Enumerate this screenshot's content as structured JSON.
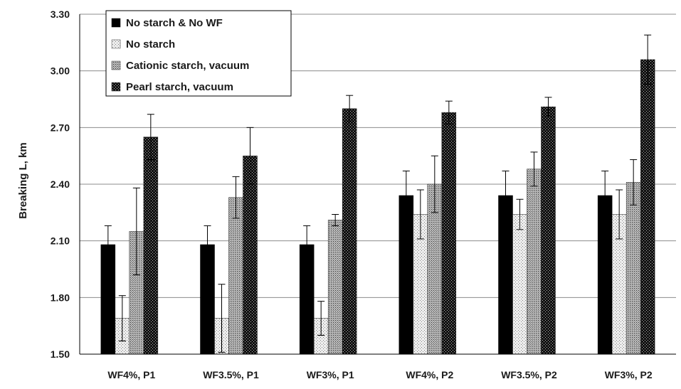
{
  "chart_data": {
    "type": "bar",
    "categories": [
      "WF4%, P1",
      "WF3.5%, P1",
      "WF3%, P1",
      "WF4%, P2",
      "WF3.5%, P2",
      "WF3%, P2"
    ],
    "series": [
      {
        "name": "No starch & No WF",
        "pattern": "solid-black",
        "values": [
          2.08,
          2.08,
          2.08,
          2.34,
          2.34,
          2.34
        ],
        "errors": [
          0.1,
          0.1,
          0.1,
          0.13,
          0.13,
          0.13
        ]
      },
      {
        "name": "No starch",
        "pattern": "light-dotted",
        "values": [
          1.69,
          1.69,
          1.69,
          2.24,
          2.24,
          2.24
        ],
        "errors": [
          0.12,
          0.18,
          0.09,
          0.13,
          0.08,
          0.13
        ]
      },
      {
        "name": "Cationic starch, vacuum",
        "pattern": "medium-dotted",
        "values": [
          2.15,
          2.33,
          2.21,
          2.4,
          2.48,
          2.41
        ],
        "errors": [
          0.23,
          0.11,
          0.03,
          0.15,
          0.09,
          0.12
        ]
      },
      {
        "name": "Pearl starch, vacuum",
        "pattern": "dark-checker",
        "values": [
          2.65,
          2.55,
          2.8,
          2.78,
          2.81,
          3.06
        ],
        "errors": [
          0.12,
          0.15,
          0.07,
          0.06,
          0.05,
          0.13
        ]
      }
    ],
    "ylabel": "Breaking L, km",
    "xlabel": "",
    "ylim": [
      1.5,
      3.3
    ],
    "yticks": [
      "1.50",
      "1.80",
      "2.10",
      "2.40",
      "2.70",
      "3.00",
      "3.30"
    ],
    "grid": "horizontal",
    "legend_position": "top-left",
    "error_bars": true
  }
}
